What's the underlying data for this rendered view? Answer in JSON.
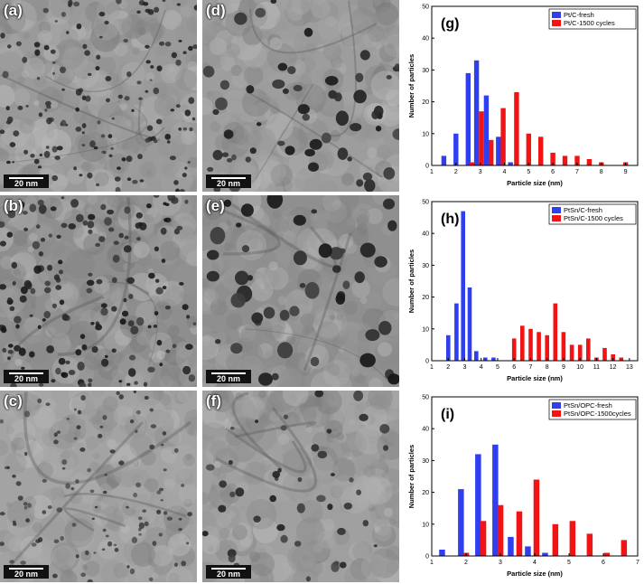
{
  "micrographs": [
    {
      "label": "(a)",
      "scale": "20 nm"
    },
    {
      "label": "(b)",
      "scale": "20 nm"
    },
    {
      "label": "(c)",
      "scale": "20 nm"
    },
    {
      "label": "(d)",
      "scale": "20 nm"
    },
    {
      "label": "(e)",
      "scale": "20 nm"
    },
    {
      "label": "(f)",
      "scale": "20 nm"
    }
  ],
  "colors": {
    "fresh": "#2f3ff0",
    "cycled": "#f01414"
  },
  "chart_data": [
    {
      "type": "bar",
      "panel_label": "(g)",
      "xlabel": "Particle size (nm)",
      "ylabel": "Number of particles",
      "xlim": [
        1,
        9.5
      ],
      "ylim": [
        0,
        50
      ],
      "xticks": [
        1,
        2,
        3,
        4,
        5,
        6,
        7,
        8,
        9
      ],
      "yticks": [
        0,
        10,
        20,
        30,
        40,
        50
      ],
      "legend_position": "top-right",
      "bar_width": 0.2,
      "series": [
        {
          "name": "Pt/C-fresh",
          "color": "#2f3ff0",
          "x": [
            1.5,
            2.0,
            2.5,
            2.85,
            3.25,
            3.75,
            4.25
          ],
          "values": [
            3,
            10,
            29,
            33,
            22,
            9,
            1
          ]
        },
        {
          "name": "Pt/C-1500 cycles",
          "color": "#f01414",
          "x": [
            2.65,
            3.05,
            3.45,
            3.95,
            4.5,
            5.0,
            5.5,
            6.0,
            6.5,
            7.0,
            7.5,
            8.0,
            8.5,
            9.0
          ],
          "values": [
            1,
            17,
            8,
            18,
            23,
            10,
            9,
            4,
            3,
            3,
            2,
            1,
            0,
            1
          ]
        }
      ]
    },
    {
      "type": "bar",
      "panel_label": "(h)",
      "xlabel": "Particle size (nm)",
      "ylabel": "Number of particles",
      "xlim": [
        1,
        13.5
      ],
      "ylim": [
        0,
        50
      ],
      "xticks": [
        1,
        2,
        3,
        4,
        5,
        6,
        7,
        8,
        9,
        10,
        11,
        12,
        13
      ],
      "yticks": [
        0,
        10,
        20,
        30,
        40,
        50
      ],
      "legend_position": "top-right",
      "bar_width": 0.25,
      "series": [
        {
          "name": "PtSn/C-fresh",
          "color": "#2f3ff0",
          "x": [
            2.0,
            2.5,
            2.9,
            3.3,
            3.7,
            4.25,
            4.75
          ],
          "values": [
            8,
            18,
            47,
            23,
            3,
            1,
            1
          ]
        },
        {
          "name": "PtSn/C-1500 cycles",
          "color": "#f01414",
          "x": [
            6.0,
            6.5,
            7.0,
            7.5,
            8.0,
            8.5,
            9.0,
            9.5,
            10.0,
            10.5,
            11.0,
            11.5,
            12.0,
            12.5
          ],
          "values": [
            7,
            11,
            10,
            9,
            8,
            18,
            9,
            5,
            5,
            7,
            1,
            4,
            2,
            1
          ]
        }
      ]
    },
    {
      "type": "bar",
      "panel_label": "(i)",
      "xlabel": "Particle size (nm)",
      "ylabel": "Number of particles",
      "xlim": [
        1,
        7
      ],
      "ylim": [
        0,
        50
      ],
      "xticks": [
        1,
        2,
        3,
        4,
        5,
        6,
        7
      ],
      "yticks": [
        0,
        10,
        20,
        30,
        40,
        50
      ],
      "legend_position": "top-right",
      "bar_width": 0.17,
      "series": [
        {
          "name": "PtSn/OPC-fresh",
          "color": "#2f3ff0",
          "x": [
            1.3,
            1.85,
            2.35,
            2.85,
            3.3,
            3.8,
            4.3
          ],
          "values": [
            2,
            21,
            32,
            35,
            6,
            3,
            1
          ]
        },
        {
          "name": "PtSn/OPC-1500cycles",
          "color": "#f01414",
          "x": [
            2.0,
            2.5,
            3.0,
            3.55,
            4.05,
            4.6,
            5.1,
            5.6,
            6.1,
            6.6
          ],
          "values": [
            1,
            11,
            16,
            14,
            24,
            10,
            11,
            7,
            1,
            5
          ]
        }
      ]
    }
  ]
}
